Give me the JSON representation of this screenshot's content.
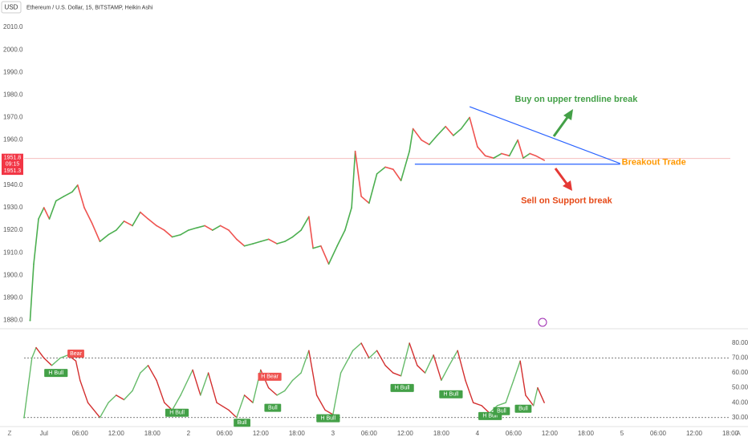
{
  "header": {
    "currency": "USD",
    "symbol": "Ethereum / U.S. Dollar, 15, BITSTAMP, Heikin Ashi"
  },
  "axis_buttons": {
    "left": "Z",
    "right": "A"
  },
  "chart_data": [
    {
      "type": "line",
      "x": [
        -2.3,
        -1.7,
        -0.9,
        0,
        0.9,
        2,
        3.3,
        4.7,
        5.6,
        6.7,
        8,
        9.3,
        10.7,
        12,
        13.3,
        14.7,
        16,
        17.3,
        18.7,
        20,
        21.3,
        22.7,
        24,
        25.3,
        26.7,
        28,
        29.3,
        30.7,
        32,
        33.3,
        34.7,
        36,
        37.3,
        38.7,
        40,
        41.3,
        42.7,
        44,
        44.7,
        46,
        47.3,
        48.7,
        50,
        51.1,
        51.7,
        52.7,
        54,
        55.3,
        56.7,
        58,
        59.3,
        60.7,
        61.3,
        62.7,
        64,
        65.3,
        66.7,
        68,
        69.3,
        70.7,
        72,
        73.3,
        74.7,
        76,
        77.3,
        78.7,
        79.6,
        80.7,
        81.7,
        83.1
      ],
      "values": [
        1880,
        1905,
        1925,
        1930,
        1925,
        1933,
        1935,
        1937,
        1940,
        1930,
        1923,
        1915,
        1918,
        1920,
        1924,
        1922,
        1928,
        1925,
        1922,
        1920,
        1917,
        1918,
        1920,
        1921,
        1922,
        1920,
        1922,
        1920,
        1916,
        1913,
        1914,
        1915,
        1916,
        1914,
        1915,
        1917,
        1920,
        1926,
        1912,
        1913,
        1905,
        1913,
        1920,
        1930,
        1955,
        1935,
        1932,
        1945,
        1948,
        1947,
        1942,
        1955,
        1965,
        1960,
        1958,
        1962,
        1966,
        1962,
        1965,
        1970,
        1957,
        1953,
        1952,
        1954,
        1953,
        1960,
        1952,
        1954,
        1953,
        1951
      ],
      "up_color": "#4caf50",
      "down_color": "#ef5350",
      "xlim": [
        -3.3,
        114
      ],
      "xticks": [
        {
          "value": 0,
          "label": "Jul"
        },
        {
          "value": 6,
          "label": "06:00"
        },
        {
          "value": 12,
          "label": "12:00"
        },
        {
          "value": 18,
          "label": "18:00"
        },
        {
          "value": 24,
          "label": "2"
        },
        {
          "value": 30,
          "label": "06:00"
        },
        {
          "value": 36,
          "label": "12:00"
        },
        {
          "value": 42,
          "label": "18:00"
        },
        {
          "value": 48,
          "label": "3"
        },
        {
          "value": 54,
          "label": "06:00"
        },
        {
          "value": 60,
          "label": "12:00"
        },
        {
          "value": 66,
          "label": "18:00"
        },
        {
          "value": 72,
          "label": "4"
        },
        {
          "value": 78,
          "label": "06:00"
        },
        {
          "value": 84,
          "label": "12:00"
        },
        {
          "value": 90,
          "label": "18:00"
        },
        {
          "value": 96,
          "label": "5"
        },
        {
          "value": 102,
          "label": "06:00"
        },
        {
          "value": 108,
          "label": "12:00"
        },
        {
          "value": 114,
          "label": "18:00"
        }
      ],
      "ylim": [
        1877,
        2015
      ],
      "yticks": [
        {
          "value": 1880,
          "label": "1880.0"
        },
        {
          "value": 1890,
          "label": "1890.0"
        },
        {
          "value": 1900,
          "label": "1900.0"
        },
        {
          "value": 1910,
          "label": "1910.0"
        },
        {
          "value": 1920,
          "label": "1920.0"
        },
        {
          "value": 1930,
          "label": "1930.0"
        },
        {
          "value": 1940,
          "label": "1940.0"
        },
        {
          "value": 1960,
          "label": "1960.0"
        },
        {
          "value": 1970,
          "label": "1970.0"
        },
        {
          "value": 1980,
          "label": "1980.0"
        },
        {
          "value": 1990,
          "label": "1990.0"
        },
        {
          "value": 2000,
          "label": "2000.0"
        },
        {
          "value": 2010,
          "label": "2010.0"
        }
      ],
      "last_price": {
        "value": 1951.8,
        "countdown": "09:15"
      },
      "prev_close": 1951.3,
      "trendlines": [
        {
          "x": [
            70.7,
            95.7
          ],
          "y": [
            1974.8,
            1949.6
          ],
          "color": "#2962ff"
        },
        {
          "x": [
            61.6,
            95.7
          ],
          "y": [
            1949.3,
            1949.3
          ],
          "color": "#2962ff"
        }
      ],
      "annotations": [
        {
          "text": "Buy on upper trendline break",
          "x": 88.4,
          "y": 1978,
          "color": "#43a047"
        },
        {
          "text": "Sell on Support break",
          "x": 86.8,
          "y": 1933,
          "color": "#e64a19"
        },
        {
          "text": "Breakout Trade",
          "x": 101.3,
          "y": 1950,
          "color": "#ff9800"
        }
      ]
    },
    {
      "type": "line",
      "x": [
        -3.3,
        -2,
        -1.3,
        0,
        1.3,
        2.7,
        4,
        5.3,
        6,
        7.3,
        9.3,
        10.7,
        12,
        13.3,
        14.7,
        16,
        17.3,
        18.7,
        20,
        21.3,
        22.7,
        24.7,
        26,
        27.3,
        28.7,
        30.7,
        32,
        33.3,
        34.7,
        36,
        37.3,
        38.7,
        40,
        41.3,
        42.7,
        44,
        45.3,
        46.7,
        48,
        49.3,
        51.3,
        52.7,
        54,
        55.3,
        56.7,
        58,
        59.3,
        60.7,
        62,
        63.3,
        64.7,
        66,
        67.3,
        68.7,
        70,
        71.3,
        72.7,
        74,
        75.3,
        76.7,
        78,
        79.1,
        80,
        81.3,
        82,
        83.1
      ],
      "values": [
        30,
        70,
        77,
        70,
        65,
        70,
        72,
        68,
        55,
        40,
        30,
        40,
        45,
        42,
        48,
        60,
        65,
        55,
        40,
        35,
        45,
        62,
        45,
        60,
        40,
        35,
        30,
        45,
        40,
        62,
        50,
        45,
        48,
        55,
        60,
        75,
        45,
        35,
        32,
        60,
        75,
        80,
        70,
        75,
        65,
        60,
        58,
        80,
        65,
        60,
        72,
        55,
        65,
        75,
        55,
        40,
        38,
        33,
        38,
        40,
        55,
        68,
        45,
        38,
        50,
        40
      ],
      "up_color": "#66bb6a",
      "down_color": "#d32f2f",
      "xlim": [
        -3.3,
        114
      ],
      "ylim": [
        25,
        87
      ],
      "yticks": [
        {
          "value": 30,
          "label": "30.00"
        },
        {
          "value": 40,
          "label": "40.00"
        },
        {
          "value": 50,
          "label": "50.00"
        },
        {
          "value": 60,
          "label": "60.00"
        },
        {
          "value": 70,
          "label": "70.00"
        },
        {
          "value": 80,
          "label": "80.00"
        }
      ],
      "hlines": [
        70,
        30
      ],
      "annotations": [
        {
          "text": "Bear",
          "x": 5.3,
          "y": 73,
          "color": "#ef5350"
        },
        {
          "text": "H Bull",
          "x": 2,
          "y": 60,
          "color": "#43a047"
        },
        {
          "text": "H Bull",
          "x": 22.1,
          "y": 33.2,
          "color": "#43a047"
        },
        {
          "text": "Bull",
          "x": 32.9,
          "y": 26.5,
          "color": "#43a047"
        },
        {
          "text": "Bull",
          "x": 38,
          "y": 36.5,
          "color": "#43a047"
        },
        {
          "text": "H Bear",
          "x": 37.5,
          "y": 57.4,
          "color": "#ef5350"
        },
        {
          "text": "H Bull",
          "x": 47.2,
          "y": 29.5,
          "color": "#43a047"
        },
        {
          "text": "H Bull",
          "x": 59.5,
          "y": 49.9,
          "color": "#43a047"
        },
        {
          "text": "H Bull",
          "x": 67.6,
          "y": 45.6,
          "color": "#43a047"
        },
        {
          "text": "H Bull",
          "x": 74.1,
          "y": 31,
          "color": "#43a047"
        },
        {
          "text": "Bull",
          "x": 76,
          "y": 34.3,
          "color": "#43a047"
        },
        {
          "text": "Bull",
          "x": 79.6,
          "y": 35.9,
          "color": "#43a047"
        }
      ]
    }
  ]
}
